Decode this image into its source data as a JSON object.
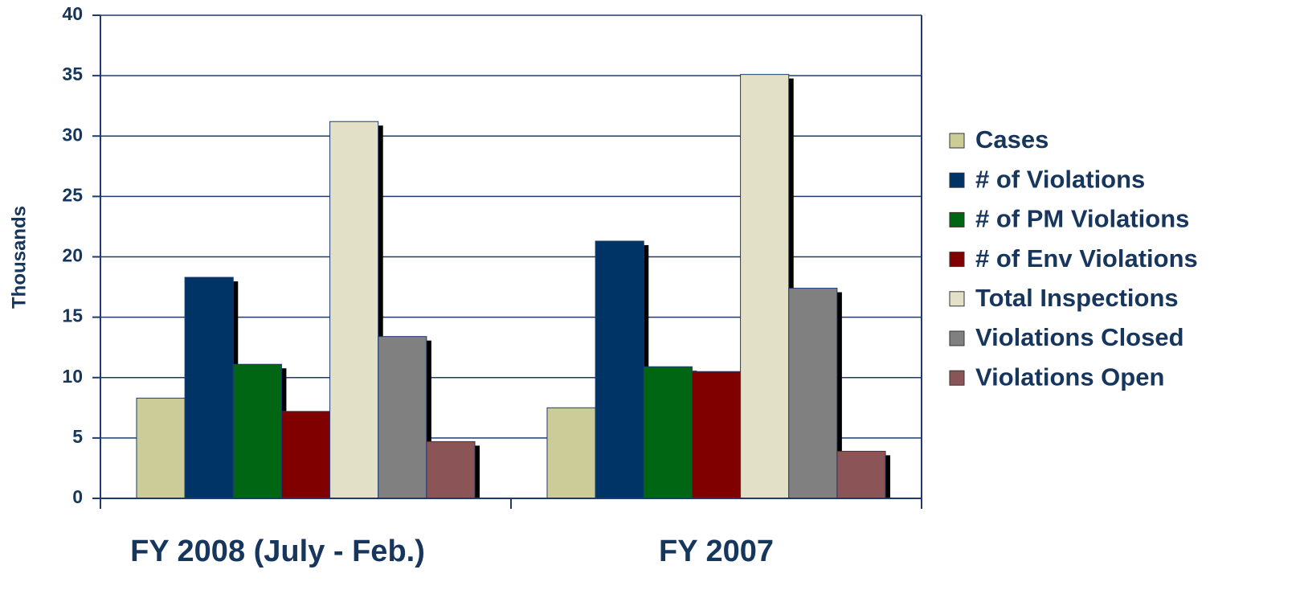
{
  "chart_data": {
    "type": "bar",
    "ylabel": "Thousands",
    "categories": [
      "FY 2008 (July - Feb.)",
      "FY 2007"
    ],
    "series": [
      {
        "name": "Cases",
        "color": "#cccc99",
        "values": [
          8.3,
          7.5
        ]
      },
      {
        "name": "# of Violations",
        "color": "#003366",
        "values": [
          18.3,
          21.3
        ]
      },
      {
        "name": "# of PM Violations",
        "color": "#006614",
        "values": [
          11.1,
          10.9
        ]
      },
      {
        "name": "# of Env Violations",
        "color": "#800000",
        "values": [
          7.2,
          10.5
        ]
      },
      {
        "name": "Total Inspections",
        "color": "#e3e0c8",
        "values": [
          31.2,
          35.1
        ]
      },
      {
        "name": "Violations Closed",
        "color": "#808080",
        "values": [
          13.4,
          17.4
        ]
      },
      {
        "name": "Violations Open",
        "color": "#8b5558",
        "values": [
          4.7,
          3.9
        ]
      }
    ],
    "ylim": [
      0,
      40
    ],
    "yticks": [
      0,
      5,
      10,
      15,
      20,
      25,
      30,
      35,
      40
    ],
    "grid": true,
    "legend": "right"
  }
}
